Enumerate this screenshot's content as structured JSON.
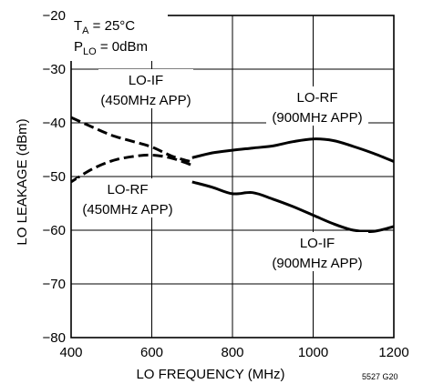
{
  "chart_data": {
    "type": "line",
    "xlabel": "LO FREQUENCY (MHz)",
    "ylabel": "LO LEAKAGE (dBm)",
    "xlim": [
      400,
      1200
    ],
    "ylim": [
      -80,
      -20
    ],
    "xticks": [
      400,
      600,
      800,
      1000,
      1200
    ],
    "yticks": [
      -20,
      -30,
      -40,
      -50,
      -60,
      -70,
      -80
    ],
    "xtick_labels": [
      "400",
      "600",
      "800",
      "1000",
      "1200"
    ],
    "ytick_labels": [
      "−20",
      "−30",
      "−40",
      "−50",
      "−60",
      "−70",
      "−80"
    ],
    "grid": true,
    "conditions": {
      "ta": {
        "main": "T",
        "sub": "A",
        "rest": " = 25°C"
      },
      "plo": {
        "main": "P",
        "sub": "LO",
        "rest": " = 0dBm"
      }
    },
    "figure_code": "5527 G20",
    "series": [
      {
        "name": "LO-IF (450MHz APP)",
        "line_style": "dashed",
        "x": [
          400,
          450,
          500,
          550,
          600,
          650,
          700
        ],
        "y": [
          -39,
          -40.7,
          -42.3,
          -43.4,
          -44.5,
          -46.2,
          -47.3
        ]
      },
      {
        "name": "LO-RF (450MHz APP)",
        "line_style": "dashed",
        "x": [
          400,
          450,
          500,
          550,
          600,
          650,
          700
        ],
        "y": [
          -51,
          -48.7,
          -47.1,
          -46.3,
          -46,
          -46.6,
          -47.9
        ]
      },
      {
        "name": "LO-RF (900MHz APP)",
        "line_style": "solid",
        "x": [
          700,
          750,
          800,
          850,
          900,
          950,
          1000,
          1050,
          1100,
          1150,
          1200
        ],
        "y": [
          -46.5,
          -45.6,
          -45.1,
          -44.7,
          -44.3,
          -43.5,
          -43,
          -43.3,
          -44.4,
          -45.7,
          -47.2
        ]
      },
      {
        "name": "LO-IF (900MHz APP)",
        "line_style": "solid",
        "x": [
          700,
          750,
          800,
          850,
          900,
          950,
          1000,
          1050,
          1100,
          1150,
          1200
        ],
        "y": [
          -51,
          -52,
          -53.2,
          -53,
          -54.2,
          -55.6,
          -57.2,
          -58.8,
          -60,
          -60.2,
          -59.3
        ]
      }
    ],
    "annotations": {
      "lo_if_450": [
        "LO-IF",
        "(450MHz APP)"
      ],
      "lo_rf_450": [
        "LO-RF",
        "(450MHz APP)"
      ],
      "lo_rf_900": [
        "LO-RF",
        "(900MHz APP)"
      ],
      "lo_if_900": [
        "LO-IF",
        "(900MHz APP)"
      ]
    }
  }
}
